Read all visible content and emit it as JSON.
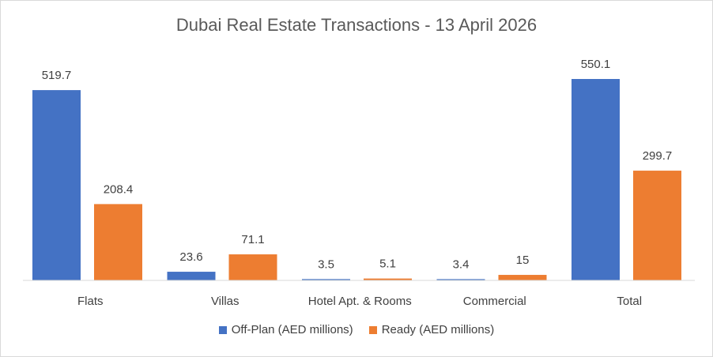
{
  "chart_data": {
    "type": "bar",
    "title": "Dubai Real Estate Transactions - 13 April 2026",
    "categories": [
      "Flats",
      "Villas",
      "Hotel Apt. & Rooms",
      "Commercial",
      "Total"
    ],
    "series": [
      {
        "name": "Off-Plan (AED millions)",
        "color": "#4472c4",
        "values": [
          519.7,
          23.6,
          3.5,
          3.4,
          550.1
        ],
        "labels": [
          "519.7",
          "23.6",
          "3.5",
          "3.4",
          "550.1"
        ]
      },
      {
        "name": "Ready (AED millions)",
        "color": "#ed7d31",
        "values": [
          208.4,
          71.1,
          5.1,
          15,
          299.7
        ],
        "labels": [
          "208.4",
          "71.1",
          "5.1",
          "15",
          "299.7"
        ]
      }
    ],
    "ylim": [
      0,
      550.1
    ],
    "grid": false,
    "legend_position": "bottom"
  }
}
